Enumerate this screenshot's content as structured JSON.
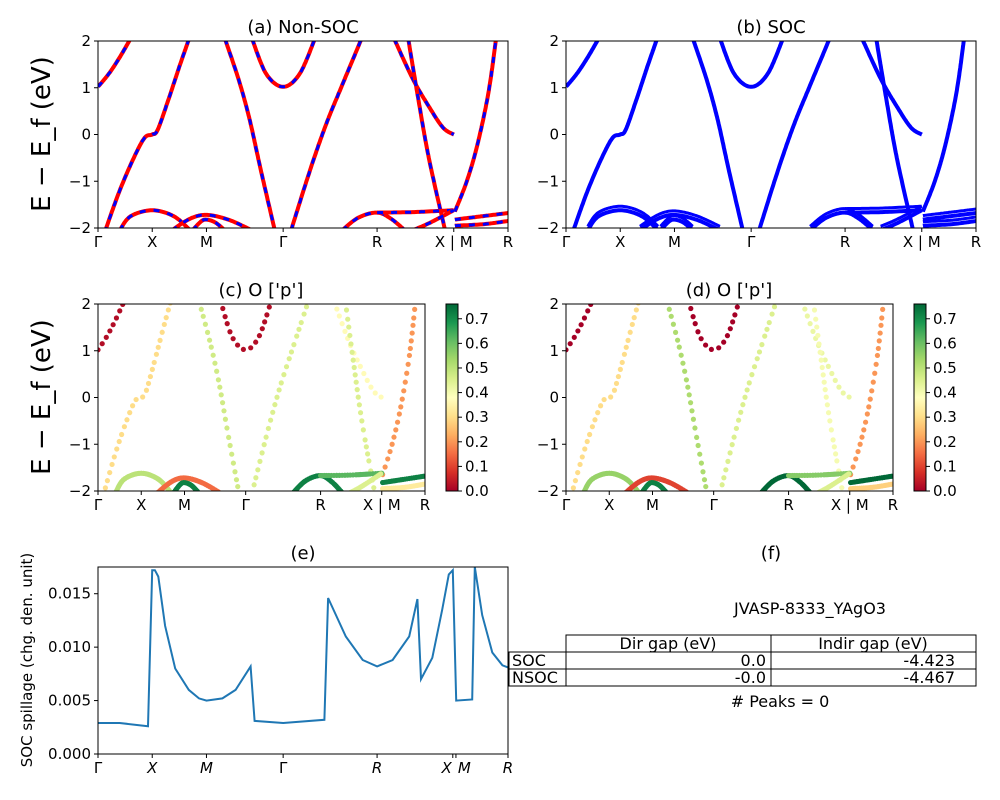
{
  "figure_ylabel": "E − E_f (eV)",
  "kpath_ticks": {
    "labels": [
      "Γ",
      "X",
      "M",
      "Γ",
      "R",
      "X | M",
      "R"
    ],
    "k": [
      0,
      0.5,
      1.0,
      1.707,
      2.573,
      3.28,
      3.78
    ]
  },
  "bands": [
    {
      "w": 0.02,
      "pts": [
        [
          0,
          1.02
        ],
        [
          0.1,
          1.3
        ],
        [
          0.2,
          1.65
        ],
        [
          0.3,
          2.05
        ]
      ]
    },
    {
      "w": 0.3,
      "pts": [
        [
          0.06,
          -2.1
        ],
        [
          0.2,
          -1.2
        ],
        [
          0.33,
          -0.5
        ],
        [
          0.43,
          -0.07
        ],
        [
          0.5,
          0.0
        ],
        [
          0.55,
          0.1
        ],
        [
          0.65,
          0.75
        ],
        [
          0.75,
          1.45
        ],
        [
          0.84,
          2.05
        ]
      ]
    },
    {
      "w": 0.47,
      "pts": [
        [
          1.17,
          2.05
        ],
        [
          1.3,
          1.15
        ],
        [
          1.4,
          0.3
        ],
        [
          1.5,
          -0.75
        ],
        [
          1.63,
          -2.05
        ]
      ]
    },
    {
      "w": 0.02,
      "pts": [
        [
          1.42,
          2.05
        ],
        [
          1.55,
          1.3
        ],
        [
          1.707,
          1.02
        ],
        [
          1.86,
          1.3
        ],
        [
          2.0,
          2.05
        ]
      ]
    },
    {
      "w": 0.45,
      "pts": [
        [
          1.78,
          -2.05
        ],
        [
          1.95,
          -0.8
        ],
        [
          2.1,
          0.2
        ],
        [
          2.25,
          1.05
        ],
        [
          2.43,
          2.05
        ]
      ]
    },
    {
      "w": 0.37,
      "pts": [
        [
          2.73,
          2.05
        ],
        [
          2.9,
          1.2
        ],
        [
          3.05,
          0.6
        ],
        [
          3.18,
          0.15
        ],
        [
          3.28,
          0.0
        ]
      ]
    },
    {
      "w": 0.45,
      "pts": [
        [
          2.86,
          2.05
        ],
        [
          2.95,
          0.8
        ],
        [
          3.05,
          -0.5
        ],
        [
          3.2,
          -2.05
        ]
      ]
    },
    {
      "w": 0.2,
      "pts": [
        [
          3.29,
          -1.65
        ],
        [
          3.4,
          -1.0
        ],
        [
          3.5,
          -0.2
        ],
        [
          3.6,
          0.9
        ],
        [
          3.67,
          2.05
        ]
      ]
    },
    {
      "w": 0.5,
      "pts": [
        [
          0.2,
          -2.05
        ],
        [
          0.3,
          -1.75
        ],
        [
          0.5,
          -1.62
        ],
        [
          0.7,
          -1.75
        ],
        [
          0.85,
          -2.05
        ]
      ]
    },
    {
      "w": 0.15,
      "pts": [
        [
          0.68,
          -2.05
        ],
        [
          0.85,
          -1.8
        ],
        [
          1.0,
          -1.72
        ],
        [
          1.2,
          -1.82
        ],
        [
          1.42,
          -2.05
        ]
      ]
    },
    {
      "w": 0.72,
      "pts": [
        [
          0.87,
          -2.05
        ],
        [
          0.95,
          -1.86
        ],
        [
          1.0,
          -1.82
        ],
        [
          1.08,
          -1.88
        ],
        [
          1.17,
          -2.05
        ]
      ]
    },
    {
      "w": 0.72,
      "pts": [
        [
          2.25,
          -2.05
        ],
        [
          2.4,
          -1.78
        ],
        [
          2.573,
          -1.67
        ],
        [
          2.7,
          -1.8
        ],
        [
          2.83,
          -2.05
        ]
      ]
    },
    {
      "w": 0.62,
      "pts": [
        [
          2.573,
          -1.67
        ],
        [
          2.9,
          -1.66
        ],
        [
          3.28,
          -1.62
        ]
      ]
    },
    {
      "w": 0.45,
      "pts": [
        [
          2.9,
          -2.05
        ],
        [
          3.05,
          -1.9
        ],
        [
          3.28,
          -1.62
        ]
      ]
    },
    {
      "w": 0.72,
      "pts": [
        [
          3.29,
          -1.82
        ],
        [
          3.5,
          -1.76
        ],
        [
          3.78,
          -1.68
        ]
      ]
    },
    {
      "w": 0.33,
      "pts": [
        [
          3.29,
          -1.95
        ],
        [
          3.55,
          -1.92
        ],
        [
          3.78,
          -1.85
        ]
      ]
    }
  ],
  "chart_data": [
    {
      "id": "a",
      "type": "line",
      "title": "(a) Non-SOC",
      "ylim": [
        -2,
        2
      ],
      "yticks": [
        -2,
        -1,
        0,
        1,
        2
      ],
      "colors": {
        "line": "#ff0000",
        "dash": "#0000ff"
      }
    },
    {
      "id": "b",
      "type": "line",
      "title": "(b) SOC",
      "ylim": [
        -2,
        2
      ],
      "yticks": [
        -2,
        -1,
        0,
        1,
        2
      ],
      "colors": {
        "line": "#0000ff"
      }
    },
    {
      "id": "c",
      "type": "scatter",
      "title": "(c)  O ['p']",
      "ylim": [
        -2,
        2
      ],
      "yticks": [
        -2,
        -1,
        0,
        1,
        2
      ],
      "colorbar": {
        "range": [
          0,
          0.76
        ],
        "ticks": [
          "0.0",
          "0.1",
          "0.2",
          "0.3",
          "0.4",
          "0.5",
          "0.6",
          "0.7"
        ],
        "colormap": "RdYlGn"
      }
    },
    {
      "id": "d",
      "type": "scatter",
      "title": "(d) O ['p']",
      "ylim": [
        -2,
        2
      ],
      "yticks": [
        -2,
        -1,
        0,
        1,
        2
      ],
      "colorbar": {
        "range": [
          0,
          0.76
        ],
        "ticks": [
          "0.0",
          "0.1",
          "0.2",
          "0.3",
          "0.4",
          "0.5",
          "0.6",
          "0.7"
        ],
        "colormap": "RdYlGn"
      }
    },
    {
      "id": "e",
      "type": "line",
      "title": "(e)",
      "ylabel": "SOC spillage (chg. den. unit)",
      "ylim": [
        0,
        0.0175
      ],
      "yticks": [
        "0.000",
        "0.005",
        "0.010",
        "0.015"
      ],
      "xticks": {
        "labels": [
          "Γ",
          "X",
          "M",
          "Γ",
          "R",
          "X",
          "M",
          "R"
        ],
        "k": [
          0,
          0.5,
          1.0,
          1.707,
          2.573,
          3.271,
          3.3,
          3.78
        ]
      },
      "color": "#1f77b4",
      "x": [
        0,
        0.2,
        0.461,
        0.5,
        0.525,
        0.556,
        0.619,
        0.712,
        0.837,
        0.931,
        1.0,
        1.147,
        1.269,
        1.407,
        1.444,
        1.707,
        2.087,
        2.121,
        2.285,
        2.44,
        2.573,
        2.716,
        2.869,
        2.945,
        2.978,
        3.082,
        3.173,
        3.234,
        3.271,
        3.302,
        3.45,
        3.474,
        3.542,
        3.635,
        3.728,
        3.78
      ],
      "y": [
        0.0029,
        0.0029,
        0.0026,
        0.0172,
        0.0172,
        0.0166,
        0.012,
        0.008,
        0.006,
        0.0052,
        0.005,
        0.0052,
        0.006,
        0.0082,
        0.0031,
        0.0029,
        0.0032,
        0.0146,
        0.011,
        0.0088,
        0.0082,
        0.0088,
        0.011,
        0.0145,
        0.007,
        0.009,
        0.0135,
        0.0168,
        0.0172,
        0.005,
        0.0051,
        0.0175,
        0.013,
        0.0095,
        0.0083,
        0.0081
      ]
    },
    {
      "id": "f",
      "type": "table",
      "title": "(f)",
      "subtitle": "JVASP-8333_YAgO3",
      "columns": [
        "",
        "Dir gap (eV)",
        "Indir gap (eV)"
      ],
      "rows": [
        [
          "SOC",
          "0.0",
          "-4.423"
        ],
        [
          "NSOC",
          "-0.0",
          "-4.467"
        ]
      ],
      "footer": "# Peaks = 0"
    }
  ]
}
